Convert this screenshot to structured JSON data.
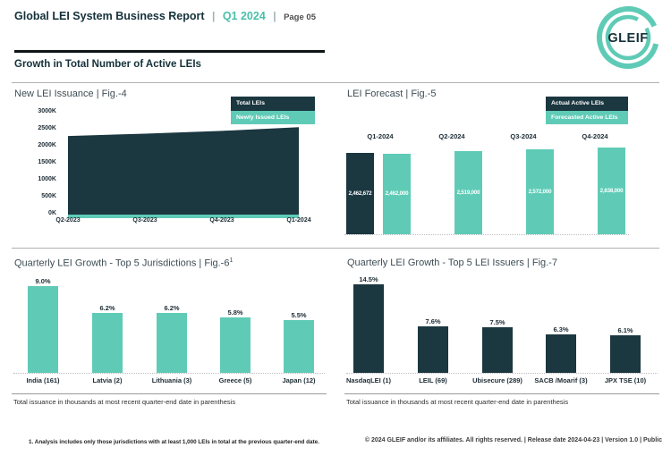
{
  "colors": {
    "dark": "#1B3740",
    "teal": "#5FCBB6",
    "header_accent": "#49BFAA"
  },
  "header": {
    "title": "Global LEI System Business Report",
    "separator": "|",
    "period": "Q1 2024",
    "page_label": "Page 05",
    "logo_text": "GLEIF"
  },
  "section_title": "Growth in Total Number of Active LEIs",
  "chart_data": [
    {
      "id": "fig4",
      "type": "area",
      "display_title": "New LEI Issuance | Fig.-4",
      "title": "New LEI Issuance",
      "figure_label": "Fig.-4",
      "x": [
        "Q2-2023",
        "Q3-2023",
        "Q4-2023",
        "Q1-2024"
      ],
      "y_ticks": [
        "3000K",
        "2500K",
        "2000K",
        "1500K",
        "1000K",
        "500K",
        "0K"
      ],
      "ylim": [
        0,
        3000000
      ],
      "legend_position": "top-right",
      "series": [
        {
          "name": "Total LEIs",
          "color": "dark",
          "values": [
            2260000,
            2330000,
            2410000,
            2520000
          ]
        },
        {
          "name": "Newly Issued LEIs",
          "color": "teal",
          "values": [
            75000,
            75000,
            75000,
            75000
          ]
        }
      ]
    },
    {
      "id": "fig5",
      "type": "bar",
      "display_title": "LEI Forecast | Fig.-5",
      "title": "LEI Forecast",
      "figure_label": "Fig.-5",
      "legend_position": "top-right",
      "series_names": [
        "Actual Active LEIs",
        "Forecasted Active LEIs"
      ],
      "scale_max": 2638000,
      "groups": [
        {
          "label": "Q1-2024",
          "actual": 2462672,
          "actual_label": "2,462,672",
          "forecast": 2462000,
          "forecast_label": "2,462,000"
        },
        {
          "label": "Q2-2024",
          "forecast": 2519000,
          "forecast_label": "2,519,000"
        },
        {
          "label": "Q3-2024",
          "forecast": 2572000,
          "forecast_label": "2,572,000"
        },
        {
          "label": "Q4-2024",
          "forecast": 2638000,
          "forecast_label": "2,638,000"
        }
      ]
    },
    {
      "id": "fig6",
      "type": "bar",
      "display_title": "Quarterly LEI Growth - Top 5 Jurisdictions | Fig.-6",
      "title": "Quarterly LEI Growth - Top 5 Jurisdictions",
      "figure_label": "Fig.-6",
      "footnote_marker": "1",
      "bar_color": "teal",
      "categories": [
        "India (161)",
        "Latvia (2)",
        "Lithuania (3)",
        "Greece (5)",
        "Japan (12)"
      ],
      "values": [
        9.0,
        6.2,
        6.2,
        5.8,
        5.5
      ],
      "value_labels": [
        "9.0%",
        "6.2%",
        "6.2%",
        "5.8%",
        "5.5%"
      ],
      "footnote": "Total issuance in thousands at most recent quarter-end date in parenthesis"
    },
    {
      "id": "fig7",
      "type": "bar",
      "display_title": "Quarterly LEI Growth - Top 5 LEI Issuers | Fig.-7",
      "title": "Quarterly LEI Growth - Top 5 LEI Issuers",
      "figure_label": "Fig.-7",
      "bar_color": "dark",
      "categories": [
        "NasdaqLEI (1)",
        "LEIL (69)",
        "Ubisecure (289)",
        "SACB /Moarif (3)",
        "JPX TSE (10)"
      ],
      "values": [
        14.5,
        7.6,
        7.5,
        6.3,
        6.1
      ],
      "value_labels": [
        "14.5%",
        "7.6%",
        "7.5%",
        "6.3%",
        "6.1%"
      ],
      "footnote": "Total issuance in thousands at most recent quarter-end date in parenthesis"
    }
  ],
  "footer": {
    "footnote": "1. Analysis includes only those jurisdictions with at least 1,000 LEIs in total at the previous quarter-end date.",
    "copyright": "© 2024 GLEIF and/or its affiliates. All rights reserved. | Release date 2024-04-23 | Version 1.0 | Public"
  }
}
